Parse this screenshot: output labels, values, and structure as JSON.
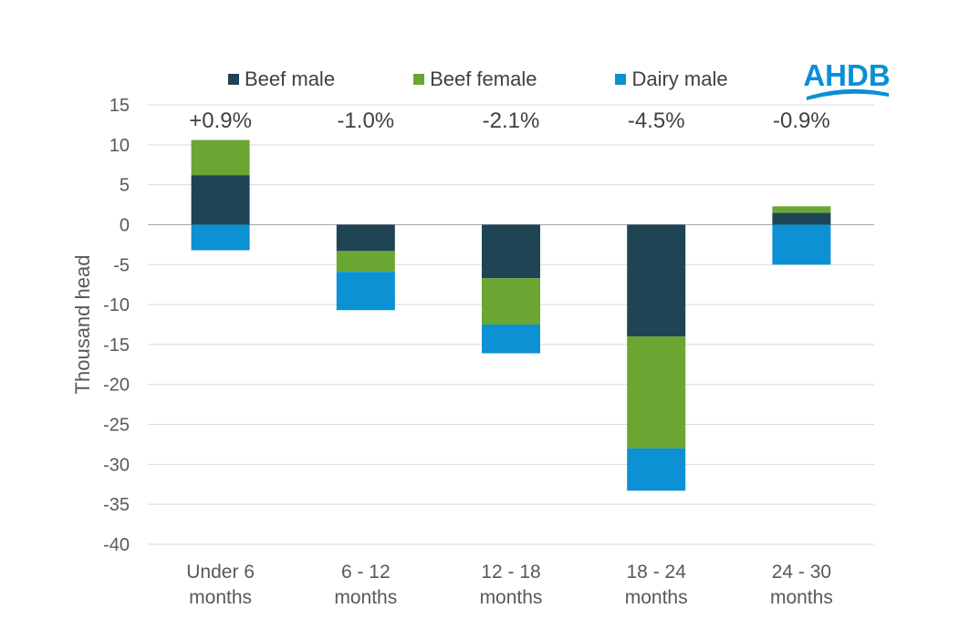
{
  "logo": {
    "text": "AHDB",
    "color": "#0a8fd6"
  },
  "legend": [
    {
      "label": "Beef male",
      "color": "#1f4454"
    },
    {
      "label": "Beef female",
      "color": "#6aa632"
    },
    {
      "label": "Dairy male",
      "color": "#0b91d4"
    }
  ],
  "chart_data": {
    "type": "bar",
    "stacked": true,
    "title": "",
    "xlabel": "",
    "ylabel": "Thousand head",
    "ylim": [
      -40,
      15
    ],
    "yticks": [
      15,
      10,
      5,
      0,
      -5,
      -10,
      -15,
      -20,
      -25,
      -30,
      -35,
      -40
    ],
    "grid": true,
    "legend_position": "top",
    "categories": [
      [
        "Under 6",
        "months"
      ],
      [
        "6 - 12",
        "months"
      ],
      [
        "12 - 18",
        "months"
      ],
      [
        "18 - 24",
        "months"
      ],
      [
        "24 - 30",
        "months"
      ]
    ],
    "annotations": [
      "+0.9%",
      "-1.0%",
      "-2.1%",
      "-4.5%",
      "-0.9%"
    ],
    "series": [
      {
        "name": "Beef male",
        "color": "#1f4454",
        "values": [
          6.2,
          -3.3,
          -6.7,
          -14.0,
          1.5
        ]
      },
      {
        "name": "Beef female",
        "color": "#6aa632",
        "values": [
          4.4,
          -2.6,
          -5.8,
          -14.0,
          0.8
        ]
      },
      {
        "name": "Dairy male",
        "color": "#0b91d4",
        "values": [
          -3.2,
          -4.8,
          -3.6,
          -5.3,
          -5.0
        ]
      }
    ]
  }
}
